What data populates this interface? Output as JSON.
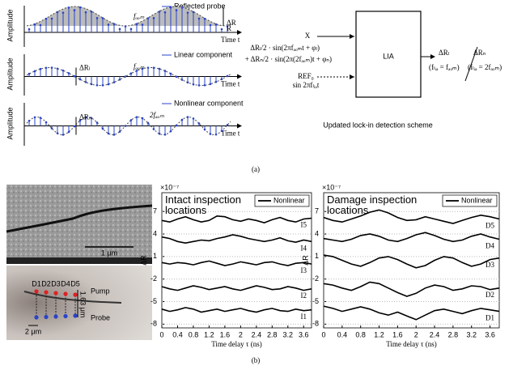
{
  "diagram": {
    "panels": [
      {
        "y_label": "Amplitude",
        "x_label": "Time t",
        "legend": "Reflected probe",
        "freq_label": "fₐₒₘ",
        "delta_label": "ΔR",
        "base_label": "R"
      },
      {
        "y_label": "Amplitude",
        "x_label": "Time t",
        "legend": "Linear component",
        "freq_label": "fₐₒₘ",
        "delta_label": "ΔRₗ"
      },
      {
        "y_label": "Amplitude",
        "x_label": "Time t",
        "legend": "Nonlinear component",
        "freq_label": "2fₐₒₘ",
        "delta_label": "ΔRₙ"
      }
    ],
    "input_x": "X",
    "term_linear": "ΔRₗ/2 · sin(2πfₐₒₘt + φₗ)",
    "term_nonlinear": "+ ΔRₙ/2 · sin(2π(2fₐₒₘ)t + φₙ)",
    "reference": "REF₀",
    "reference_signal": "sin 2πfₗᵢₐt",
    "box_label": "LIA",
    "output_linear": "ΔRₗ",
    "output_linear_condition": "(fₗᵢₐ = fₐₒₘ)",
    "output_nonlinear": "ΔRₙ",
    "output_nonlinear_condition": "(fₗᵢₐ = 2fₐₒₘ)",
    "scheme_title": "Updated lock-in detection scheme",
    "caption": "(a)"
  },
  "micrograph": {
    "scale_bar": "1 μm",
    "points": [
      "D1",
      "D2",
      "D3",
      "D4",
      "D5"
    ],
    "pump": "Pump",
    "probe": "Probe",
    "vertical_spacing": "1.63 μm",
    "horizontal_spacing": "2 μm",
    "caption": "(b)"
  },
  "chart_data": [
    {
      "type": "line",
      "title": "Intact inspection locations",
      "y_label": "ΔR",
      "y_multiplier": "×10⁻⁷",
      "x_label": "Time delay τ (ns)",
      "legend_label": "Nonlinear",
      "grid": true,
      "xlim": [
        0,
        3.8
      ],
      "xticks": [
        0,
        0.4,
        0.8,
        1.2,
        1.6,
        2,
        2.4,
        2.8,
        3.2,
        3.6
      ],
      "ylim": [
        -8.5,
        9.5
      ],
      "yticks": [
        7,
        4,
        1,
        -2,
        -5,
        -8
      ],
      "x": [
        0,
        0.2,
        0.4,
        0.6,
        0.8,
        1,
        1.2,
        1.4,
        1.6,
        1.8,
        2,
        2.2,
        2.4,
        2.6,
        2.8,
        3,
        3.2,
        3.4,
        3.6,
        3.8
      ],
      "series": [
        {
          "name": "I5",
          "color": "#000000",
          "values": [
            5.8,
            5.6,
            6.0,
            6.3,
            5.9,
            5.6,
            5.8,
            6.4,
            6.3,
            5.9,
            5.7,
            6.0,
            5.8,
            5.5,
            5.9,
            6.2,
            5.8,
            5.6,
            6.0,
            6.1
          ]
        },
        {
          "name": "I4",
          "color": "#000000",
          "values": [
            3.6,
            3.4,
            3.0,
            2.8,
            3.0,
            3.2,
            3.1,
            3.4,
            3.6,
            3.9,
            3.7,
            3.4,
            3.2,
            3.0,
            3.2,
            3.5,
            3.1,
            2.9,
            3.2,
            3.0
          ]
        },
        {
          "name": "I3",
          "color": "#000000",
          "values": [
            0.2,
            0.0,
            0.2,
            0.1,
            -0.1,
            0.2,
            0.4,
            0.1,
            -0.2,
            0.0,
            0.3,
            0.1,
            -0.1,
            0.2,
            0.3,
            0.0,
            -0.2,
            0.1,
            0.2,
            0.0
          ]
        },
        {
          "name": "I2",
          "color": "#000000",
          "values": [
            -3.0,
            -3.3,
            -3.5,
            -3.2,
            -2.9,
            -3.1,
            -3.4,
            -3.2,
            -3.0,
            -3.3,
            -3.5,
            -3.2,
            -2.9,
            -3.1,
            -3.4,
            -3.3,
            -3.0,
            -3.2,
            -3.5,
            -3.3
          ]
        },
        {
          "name": "I1",
          "color": "#000000",
          "values": [
            -6.0,
            -6.3,
            -6.1,
            -5.8,
            -6.0,
            -6.4,
            -6.2,
            -6.0,
            -6.3,
            -6.1,
            -5.9,
            -6.2,
            -6.4,
            -6.1,
            -5.9,
            -6.2,
            -6.3,
            -6.0,
            -6.2,
            -6.1
          ]
        }
      ]
    },
    {
      "type": "line",
      "title": "Damage inspection locations",
      "y_label": "ΔR",
      "y_multiplier": "×10⁻⁷",
      "x_label": "Time delay τ (ns)",
      "legend_label": "Nonlinear",
      "grid": true,
      "xlim": [
        0,
        3.8
      ],
      "xticks": [
        0,
        0.4,
        0.8,
        1.2,
        1.6,
        2,
        2.4,
        2.8,
        3.2,
        3.6
      ],
      "ylim": [
        -8.5,
        9.5
      ],
      "yticks": [
        7,
        4,
        1,
        -2,
        -5,
        -8
      ],
      "x": [
        0,
        0.2,
        0.4,
        0.6,
        0.8,
        1,
        1.2,
        1.4,
        1.6,
        1.8,
        2,
        2.2,
        2.4,
        2.6,
        2.8,
        3,
        3.2,
        3.4,
        3.6,
        3.8
      ],
      "series": [
        {
          "name": "D5",
          "color": "#000000",
          "values": [
            6.2,
            5.8,
            5.6,
            6.0,
            6.4,
            6.9,
            7.2,
            6.8,
            6.2,
            5.8,
            5.9,
            6.3,
            6.0,
            5.7,
            5.4,
            5.8,
            6.2,
            6.5,
            6.3,
            6.0
          ]
        },
        {
          "name": "D4",
          "color": "#000000",
          "values": [
            3.4,
            3.2,
            3.0,
            3.3,
            3.8,
            4.0,
            3.7,
            3.2,
            3.0,
            3.4,
            3.9,
            4.2,
            3.8,
            3.3,
            3.0,
            3.2,
            3.7,
            4.0,
            3.6,
            3.3
          ]
        },
        {
          "name": "D3",
          "color": "#000000",
          "values": [
            1.2,
            1.0,
            0.5,
            0.0,
            -0.3,
            0.2,
            0.8,
            1.0,
            0.6,
            0.0,
            -0.5,
            -0.2,
            0.5,
            1.0,
            0.8,
            0.2,
            -0.3,
            0.0,
            0.6,
            0.8
          ]
        },
        {
          "name": "D2",
          "color": "#000000",
          "values": [
            -2.6,
            -2.8,
            -3.2,
            -3.5,
            -3.0,
            -2.4,
            -2.6,
            -3.2,
            -3.8,
            -4.3,
            -3.9,
            -3.2,
            -2.8,
            -3.0,
            -3.5,
            -3.3,
            -2.9,
            -3.0,
            -3.4,
            -3.2
          ]
        },
        {
          "name": "D1",
          "color": "#000000",
          "values": [
            -5.6,
            -5.9,
            -6.3,
            -6.0,
            -5.7,
            -6.0,
            -6.5,
            -6.8,
            -6.4,
            -6.9,
            -7.4,
            -6.8,
            -6.2,
            -6.0,
            -6.3,
            -6.6,
            -6.2,
            -5.9,
            -6.1,
            -6.3
          ]
        }
      ]
    }
  ]
}
